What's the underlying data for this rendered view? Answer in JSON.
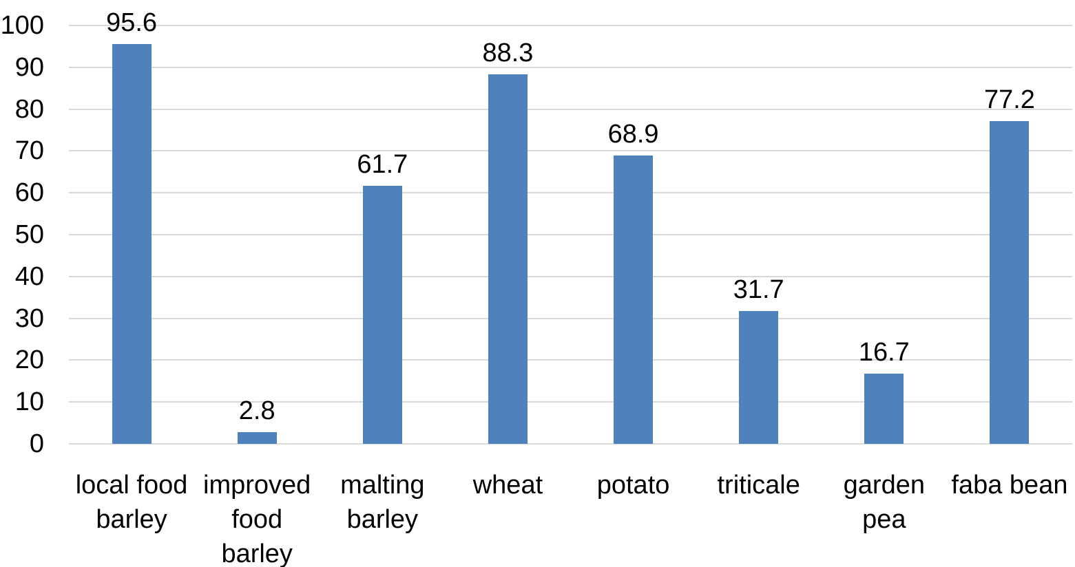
{
  "chart_data": {
    "type": "bar",
    "title": "",
    "xlabel": "",
    "ylabel": "",
    "categories": [
      "local food barley",
      "improved food barley",
      "malting barley",
      "wheat",
      "potato",
      "triticale",
      "garden pea",
      "faba bean"
    ],
    "category_display": [
      "local food\nbarley",
      "improved\nfood\nbarley",
      "malting\nbarley",
      "wheat",
      "potato",
      "triticale",
      "garden\npea",
      "faba bean"
    ],
    "values": [
      95.6,
      2.8,
      61.7,
      88.3,
      68.9,
      31.7,
      16.7,
      77.2
    ],
    "data_labels": [
      "95.6",
      "2.8",
      "61.7",
      "88.3",
      "68.9",
      "31.7",
      "16.7",
      "77.2"
    ],
    "ylim": [
      0,
      100
    ],
    "yticks": [
      0,
      10,
      20,
      30,
      40,
      50,
      60,
      70,
      80,
      90,
      100
    ],
    "grid": true,
    "legend": false,
    "colors": {
      "bar": "#4F81BD",
      "gridline": "#D9D9D9",
      "axis_line": "#D9D9D9",
      "text": "#000000",
      "background": "#FFFFFF"
    }
  }
}
